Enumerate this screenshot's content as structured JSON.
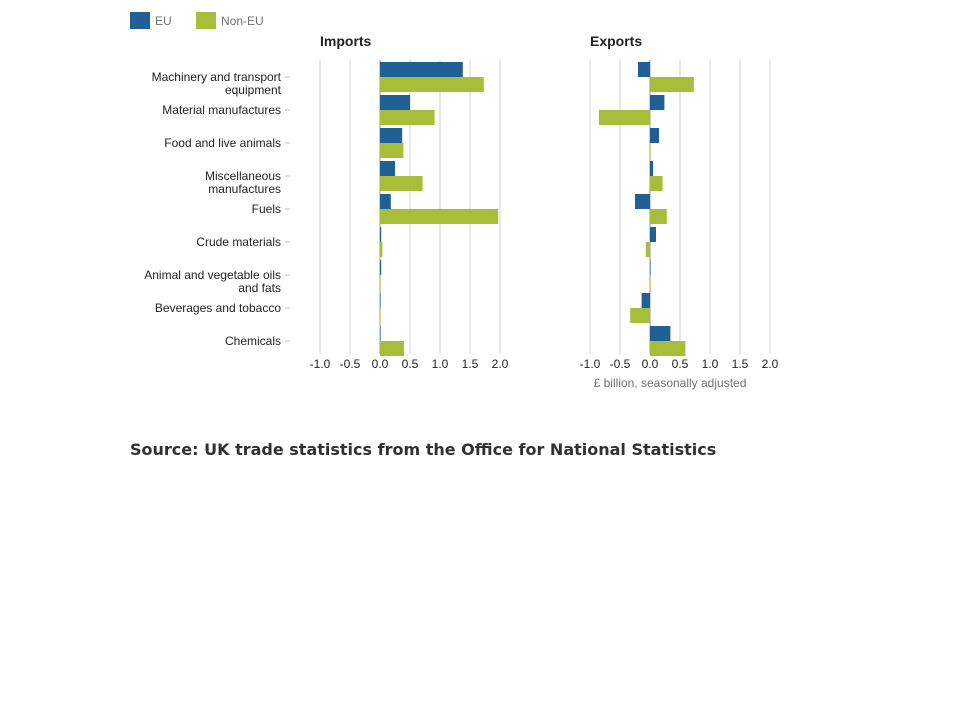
{
  "chart_data": {
    "type": "bar",
    "orientation": "horizontal",
    "legend": [
      {
        "name": "EU",
        "color": "#206095"
      },
      {
        "name": "Non-EU",
        "color": "#a8bd3a"
      }
    ],
    "legend_placement": "top-left",
    "categories": [
      [
        "Machinery and transport",
        "equipment"
      ],
      [
        "Material manufactures"
      ],
      [
        "Food and live animals"
      ],
      [
        "Miscellaneous",
        "manufactures"
      ],
      [
        "Fuels"
      ],
      [
        "Crude materials"
      ],
      [
        "Animal and vegetable oils",
        "and fats"
      ],
      [
        "Beverages and tobacco"
      ],
      [
        "Chemicals"
      ]
    ],
    "xlim": [
      -1.15,
      2.15
    ],
    "ticks": [
      "-1.0",
      "-0.5",
      "0.0",
      "0.5",
      "1.0",
      "1.5",
      "2.0"
    ],
    "tick_values": [
      -1.0,
      -0.5,
      0.0,
      0.5,
      1.0,
      1.5,
      2.0
    ],
    "grid": true,
    "xlabel": "£ billion, seasonally adjusted",
    "panels": [
      {
        "title": "Imports",
        "series": [
          {
            "name": "EU",
            "values": [
              1.38,
              0.5,
              0.37,
              0.25,
              0.18,
              0.02,
              0.02,
              0.0,
              0.0
            ]
          },
          {
            "name": "Non-EU",
            "values": [
              1.73,
              0.91,
              0.39,
              0.71,
              1.97,
              0.04,
              0.0,
              0.0,
              0.4
            ]
          }
        ]
      },
      {
        "title": "Exports",
        "series": [
          {
            "name": "EU",
            "values": [
              -0.2,
              0.24,
              0.15,
              0.05,
              -0.25,
              0.1,
              0.0,
              -0.14,
              0.34
            ]
          },
          {
            "name": "Non-EU",
            "values": [
              0.73,
              -0.85,
              0.0,
              0.21,
              0.28,
              -0.07,
              0.0,
              -0.33,
              0.59
            ]
          }
        ]
      }
    ]
  },
  "source_text": "Source: UK trade statistics from the Office for National Statistics"
}
